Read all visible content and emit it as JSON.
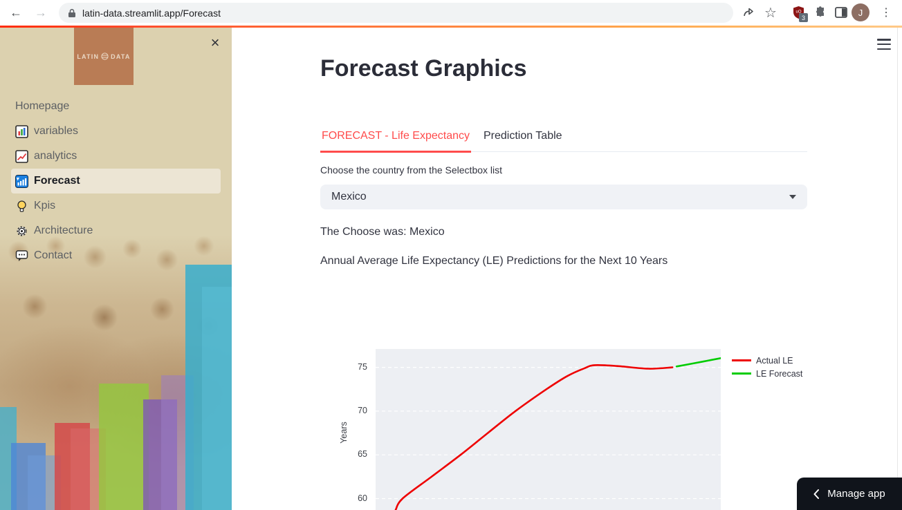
{
  "browser": {
    "url": "latin-data.streamlit.app/Forecast",
    "profile_initial": "J",
    "extension_badge": "3"
  },
  "sidebar": {
    "logo_left": "LATIN",
    "logo_right": "DATA",
    "close_glyph": "×",
    "items": [
      {
        "label": "Homepage",
        "icon": null,
        "active": false
      },
      {
        "label": "variables",
        "icon": "bar-chart",
        "active": false
      },
      {
        "label": "analytics",
        "icon": "line-chart",
        "active": false
      },
      {
        "label": "Forecast",
        "icon": "signal-bars",
        "active": true
      },
      {
        "label": "Kpis",
        "icon": "light-bulb",
        "active": false
      },
      {
        "label": "Architecture",
        "icon": "gear",
        "active": false
      },
      {
        "label": "Contact",
        "icon": "speech-bubble",
        "active": false
      }
    ]
  },
  "main": {
    "title": "Forecast Graphics",
    "tabs": [
      {
        "label": "FORECAST - Life Expectancy",
        "active": true
      },
      {
        "label": "Prediction Table",
        "active": false
      }
    ],
    "select_caption": "Choose the country from the Selectbox list",
    "selectbox_value": "Mexico",
    "chosen_text": "The Choose was: Mexico",
    "chart_heading": "Annual Average Life Expectancy (LE) Predictions for the Next 10 Years"
  },
  "manage_app": {
    "label": "Manage app"
  },
  "colors": {
    "accent_red": "#ff4b4b",
    "actual_line": "#ee0000",
    "forecast_line": "#00cc00",
    "sidebar_bg": "#dcd1af",
    "logo_bg": "#b97c55",
    "plot_bg": "#edeff3",
    "manage_bg": "#10141b"
  },
  "chart_data": {
    "type": "line",
    "title": "",
    "xlabel": "",
    "ylabel": "Years",
    "yticks": [
      60,
      65,
      70,
      75
    ],
    "y_visible_range": [
      58.7,
      77.1
    ],
    "x_axis_labels_visible": false,
    "grid": "horizontal dashed white lines",
    "legend_position": "right-top",
    "series": [
      {
        "name": "Actual LE",
        "color": "#ee0000",
        "x_frac": [
          0.058,
          0.078,
          0.162,
          0.246,
          0.325,
          0.405,
          0.495,
          0.555,
          0.605,
          0.635,
          0.7,
          0.79,
          0.86
        ],
        "values": [
          58.7,
          60.0,
          62.5,
          65.0,
          67.5,
          70.0,
          72.5,
          74.0,
          74.9,
          75.25,
          75.15,
          74.85,
          75.0
        ]
      },
      {
        "name": "LE Forecast",
        "color": "#00cc00",
        "x_frac": [
          0.872,
          0.92,
          0.96,
          1.0
        ],
        "values": [
          75.1,
          75.45,
          75.75,
          76.05
        ]
      }
    ]
  }
}
